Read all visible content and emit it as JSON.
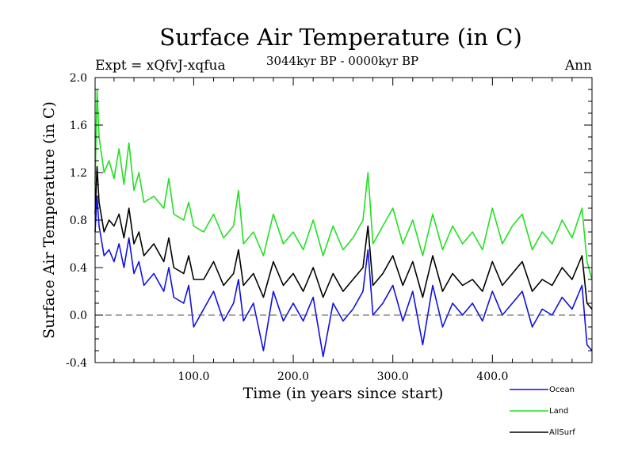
{
  "colors": {
    "ocean": "#1010e0",
    "land": "#22e022",
    "allsurf": "#000000",
    "zero_line": "#555555"
  },
  "chart_data": {
    "type": "line",
    "title": "Surface Air Temperature (in C)",
    "subtitle": "3044kyr BP - 0000kyr BP",
    "experiment_label": "Expt = xQfvJ-xqfua",
    "season_label": "Ann",
    "xlabel": "Time (in years since start)",
    "ylabel": "Surface Air Temperature (in C)",
    "xlim": [
      1,
      500
    ],
    "ylim": [
      -0.4,
      2.0
    ],
    "x_ticks": [
      {
        "value": 100,
        "label": "100.0"
      },
      {
        "value": 200,
        "label": "200.0"
      },
      {
        "value": 300,
        "label": "300.0"
      },
      {
        "value": 400,
        "label": "400.0"
      }
    ],
    "y_ticks": [
      {
        "value": -0.4,
        "label": "-0.4"
      },
      {
        "value": 0.0,
        "label": "0.0"
      },
      {
        "value": 0.4,
        "label": "0.4"
      },
      {
        "value": 0.8,
        "label": "0.8"
      },
      {
        "value": 1.2,
        "label": "1.2"
      },
      {
        "value": 1.6,
        "label": "1.6"
      },
      {
        "value": 2.0,
        "label": "2.0"
      }
    ],
    "reference_line": {
      "y": 0.0,
      "style": "dashed"
    },
    "legend": [
      {
        "name": "Ocean",
        "color_key": "ocean"
      },
      {
        "name": "Land",
        "color_key": "land"
      },
      {
        "name": "AllSurf",
        "color_key": "allsurf"
      }
    ],
    "series": [
      {
        "name": "Land",
        "color_key": "land",
        "x": [
          1,
          3,
          5,
          10,
          15,
          20,
          25,
          30,
          35,
          40,
          45,
          50,
          60,
          70,
          75,
          80,
          90,
          95,
          100,
          110,
          120,
          130,
          140,
          145,
          150,
          160,
          170,
          180,
          190,
          200,
          210,
          220,
          230,
          240,
          250,
          260,
          270,
          275,
          280,
          290,
          300,
          310,
          320,
          330,
          340,
          350,
          360,
          370,
          380,
          390,
          400,
          410,
          420,
          430,
          440,
          450,
          460,
          470,
          480,
          490,
          495,
          500
        ],
        "values": [
          1.1,
          1.9,
          1.5,
          1.2,
          1.3,
          1.15,
          1.4,
          1.1,
          1.45,
          1.05,
          1.2,
          0.95,
          1.0,
          0.9,
          1.15,
          0.85,
          0.8,
          0.95,
          0.75,
          0.7,
          0.85,
          0.65,
          0.75,
          1.05,
          0.6,
          0.7,
          0.5,
          0.85,
          0.6,
          0.7,
          0.55,
          0.8,
          0.5,
          0.75,
          0.55,
          0.65,
          0.8,
          1.2,
          0.6,
          0.75,
          0.9,
          0.6,
          0.8,
          0.5,
          0.85,
          0.55,
          0.75,
          0.6,
          0.7,
          0.55,
          0.9,
          0.6,
          0.75,
          0.85,
          0.55,
          0.7,
          0.6,
          0.8,
          0.65,
          0.9,
          0.45,
          0.3
        ]
      },
      {
        "name": "AllSurf",
        "color_key": "allsurf",
        "x": [
          1,
          3,
          5,
          10,
          15,
          20,
          25,
          30,
          35,
          40,
          45,
          50,
          60,
          70,
          75,
          80,
          90,
          95,
          100,
          110,
          120,
          130,
          140,
          145,
          150,
          160,
          170,
          180,
          190,
          200,
          210,
          220,
          230,
          240,
          250,
          260,
          270,
          275,
          280,
          290,
          300,
          310,
          320,
          330,
          340,
          350,
          360,
          370,
          380,
          390,
          400,
          410,
          420,
          430,
          440,
          450,
          460,
          470,
          480,
          490,
          495,
          500
        ],
        "values": [
          0.85,
          1.25,
          0.95,
          0.7,
          0.8,
          0.75,
          0.85,
          0.65,
          0.9,
          0.6,
          0.7,
          0.5,
          0.6,
          0.45,
          0.65,
          0.4,
          0.35,
          0.5,
          0.3,
          0.3,
          0.45,
          0.25,
          0.35,
          0.55,
          0.25,
          0.35,
          0.15,
          0.45,
          0.25,
          0.35,
          0.2,
          0.4,
          0.15,
          0.35,
          0.2,
          0.3,
          0.4,
          0.75,
          0.25,
          0.35,
          0.5,
          0.25,
          0.45,
          0.15,
          0.5,
          0.2,
          0.35,
          0.25,
          0.3,
          0.2,
          0.45,
          0.25,
          0.35,
          0.45,
          0.2,
          0.3,
          0.25,
          0.4,
          0.3,
          0.5,
          0.1,
          0.05
        ]
      },
      {
        "name": "Ocean",
        "color_key": "ocean",
        "x": [
          1,
          3,
          5,
          10,
          15,
          20,
          25,
          30,
          35,
          40,
          45,
          50,
          60,
          70,
          75,
          80,
          90,
          95,
          100,
          110,
          120,
          130,
          140,
          145,
          150,
          160,
          170,
          180,
          190,
          200,
          210,
          220,
          230,
          240,
          250,
          260,
          270,
          275,
          280,
          290,
          300,
          310,
          320,
          330,
          340,
          350,
          360,
          370,
          380,
          390,
          400,
          410,
          420,
          430,
          440,
          450,
          460,
          470,
          480,
          490,
          495,
          500
        ],
        "values": [
          0.7,
          1.0,
          0.75,
          0.5,
          0.55,
          0.45,
          0.6,
          0.4,
          0.65,
          0.35,
          0.45,
          0.25,
          0.35,
          0.2,
          0.4,
          0.15,
          0.1,
          0.25,
          -0.1,
          0.05,
          0.2,
          -0.05,
          0.1,
          0.3,
          -0.05,
          0.1,
          -0.3,
          0.2,
          -0.05,
          0.1,
          -0.05,
          0.15,
          -0.35,
          0.1,
          -0.05,
          0.05,
          0.2,
          0.55,
          0.0,
          0.1,
          0.25,
          -0.05,
          0.2,
          -0.25,
          0.25,
          -0.1,
          0.1,
          0.0,
          0.1,
          -0.05,
          0.2,
          0.0,
          0.1,
          0.2,
          -0.1,
          0.05,
          0.0,
          0.15,
          0.05,
          0.25,
          -0.25,
          -0.3
        ]
      }
    ]
  }
}
